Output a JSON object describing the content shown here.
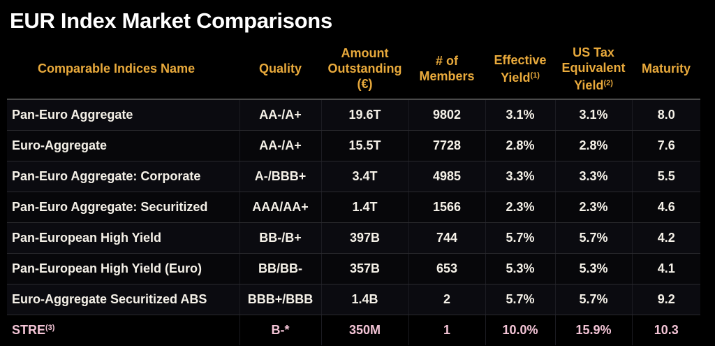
{
  "title": "EUR Index Market Comparisons",
  "headers": {
    "name": "Comparable Indices Name",
    "quality": "Quality",
    "amount": "Amount Outstanding (€)",
    "members": "# of Members",
    "eff": "Effective Yield",
    "eff_note": "(1)",
    "ustax": "US Tax Equivalent Yield",
    "ustax_note": "(2)",
    "maturity": "Maturity"
  },
  "rows": [
    {
      "name": "Pan-Euro Aggregate",
      "quality": "AA-/A+",
      "amount": "19.6T",
      "members": "9802",
      "eff": "3.1%",
      "ustax": "3.1%",
      "maturity": "8.0"
    },
    {
      "name": "Euro-Aggregate",
      "quality": "AA-/A+",
      "amount": "15.5T",
      "members": "7728",
      "eff": "2.8%",
      "ustax": "2.8%",
      "maturity": "7.6"
    },
    {
      "name": "Pan-Euro Aggregate: Corporate",
      "quality": "A-/BBB+",
      "amount": "3.4T",
      "members": "4985",
      "eff": "3.3%",
      "ustax": "3.3%",
      "maturity": "5.5"
    },
    {
      "name": "Pan-Euro Aggregate: Securitized",
      "quality": "AAA/AA+",
      "amount": "1.4T",
      "members": "1566",
      "eff": "2.3%",
      "ustax": "2.3%",
      "maturity": "4.6"
    },
    {
      "name": "Pan-European High Yield",
      "quality": "BB-/B+",
      "amount": "397B",
      "members": "744",
      "eff": "5.7%",
      "ustax": "5.7%",
      "maturity": "4.2"
    },
    {
      "name": "Pan-European High Yield (Euro)",
      "quality": "BB/BB-",
      "amount": "357B",
      "members": "653",
      "eff": "5.3%",
      "ustax": "5.3%",
      "maturity": "4.1"
    },
    {
      "name": "Euro-Aggregate Securitized ABS",
      "quality": "BBB+/BBB",
      "amount": "1.4B",
      "members": "2",
      "eff": "5.7%",
      "ustax": "5.7%",
      "maturity": "9.2"
    }
  ],
  "highlight": {
    "name": "STRE",
    "note": "(3)",
    "quality": "B-*",
    "amount": "350M",
    "members": "1",
    "eff": "10.0%",
    "ustax": "15.9%",
    "maturity": "10.3"
  },
  "colors": {
    "header": "#e9aa3c",
    "highlight": "#f3c4d6"
  }
}
